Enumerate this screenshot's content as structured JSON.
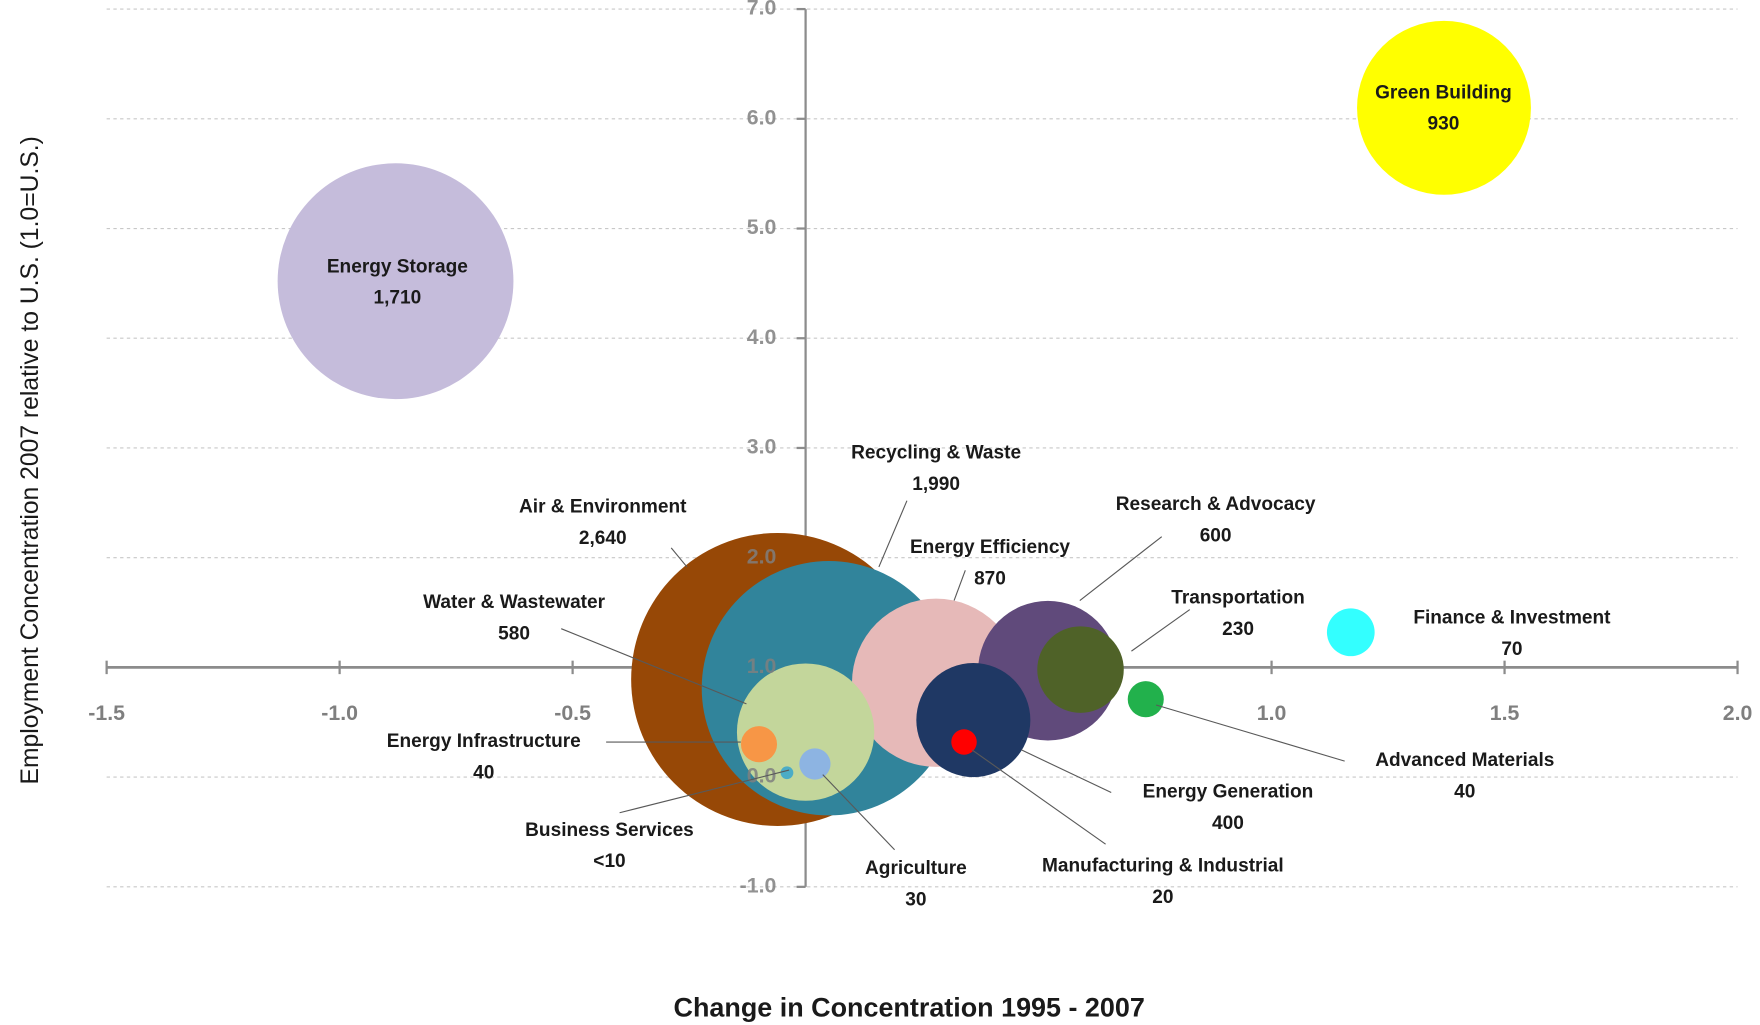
{
  "chart_data": {
    "type": "bubble",
    "xlabel": "Change in Concentration 1995 - 2007",
    "ylabel": "Employment Concentration 2007 relative to U.S. (1.0=U.S.)",
    "xlim": [
      -1.5,
      2.0
    ],
    "ylim": [
      -1.0,
      7.0
    ],
    "x_axis_crossing": 1.0,
    "grid": true,
    "xticks": [
      {
        "value": -1.5,
        "label": "-1.5"
      },
      {
        "value": -1.0,
        "label": "-1.0"
      },
      {
        "value": -0.5,
        "label": "-0.5"
      },
      {
        "value": 0,
        "label": "0.0"
      },
      {
        "value": 0.5,
        "label": "0.5"
      },
      {
        "value": 1.0,
        "label": "1.0"
      },
      {
        "value": 1.5,
        "label": "1.5"
      },
      {
        "value": 2.0,
        "label": "2.0"
      }
    ],
    "yticks": [
      {
        "value": 7,
        "label": "7.0"
      },
      {
        "value": 6,
        "label": "6.0"
      },
      {
        "value": 5,
        "label": "5.0"
      },
      {
        "value": 4,
        "label": "4.0"
      },
      {
        "value": 3,
        "label": "3.0"
      },
      {
        "value": 2,
        "label": "2.0"
      },
      {
        "value": 1,
        "label": "1.0"
      },
      {
        "value": 0,
        "label": "0.0"
      },
      {
        "value": -1,
        "label": "-1.0"
      }
    ],
    "series": [
      {
        "name": "Air & Environment",
        "color": "#974806",
        "x": -0.06,
        "y": 0.89,
        "size": 2640,
        "size_label": "2,640"
      },
      {
        "name": "Recycling  & Waste",
        "color": "#31849b",
        "x": 0.05,
        "y": 0.81,
        "size": 1990,
        "size_label": "1,990"
      },
      {
        "name": "Energy Storage",
        "color": "#c5bcdb",
        "x": -0.88,
        "y": 4.52,
        "size": 1710,
        "size_label": "1,710"
      },
      {
        "name": "Green Building",
        "color": "#ffff00",
        "x": 1.37,
        "y": 6.1,
        "size": 930,
        "size_label": "930"
      },
      {
        "name": "Energy Efficiency",
        "color": "#e6b9b8",
        "x": 0.28,
        "y": 0.86,
        "size": 870,
        "size_label": "870"
      },
      {
        "name": "Research & Advocacy",
        "color": "#604a7b",
        "x": 0.52,
        "y": 0.97,
        "size": 600,
        "size_label": "600"
      },
      {
        "name": "Water & Wastewater",
        "color": "#c3d69b",
        "x": 0.0,
        "y": 0.41,
        "size": 580,
        "size_label": "580"
      },
      {
        "name": "Energy Generation",
        "color": "#1f3864",
        "x": 0.36,
        "y": 0.52,
        "size": 400,
        "size_label": "400"
      },
      {
        "name": "Transportation",
        "color": "#4f6228",
        "x": 0.59,
        "y": 0.98,
        "size": 230,
        "size_label": "230"
      },
      {
        "name": "Finance  & Investment",
        "color": "#33ffff",
        "x": 1.17,
        "y": 1.32,
        "size": 70,
        "size_label": "70"
      },
      {
        "name": "Advanced Materials",
        "color": "#22b14c",
        "x": 0.73,
        "y": 0.71,
        "size": 40,
        "size_label": "40"
      },
      {
        "name": "Energy Infrastructure",
        "color": "#f79646",
        "x": -0.1,
        "y": 0.3,
        "size": 40,
        "size_label": "40"
      },
      {
        "name": "Agriculture",
        "color": "#8db4e2",
        "x": 0.02,
        "y": 0.12,
        "size": 30,
        "size_label": "30"
      },
      {
        "name": "Manufacturing  & Industrial",
        "color": "#ff0000",
        "x": 0.34,
        "y": 0.32,
        "size": 20,
        "size_label": "20"
      },
      {
        "name": "Business Services",
        "color": "#4bacc6",
        "x": -0.04,
        "y": 0.04,
        "size": 5,
        "size_label": "<10"
      }
    ]
  }
}
